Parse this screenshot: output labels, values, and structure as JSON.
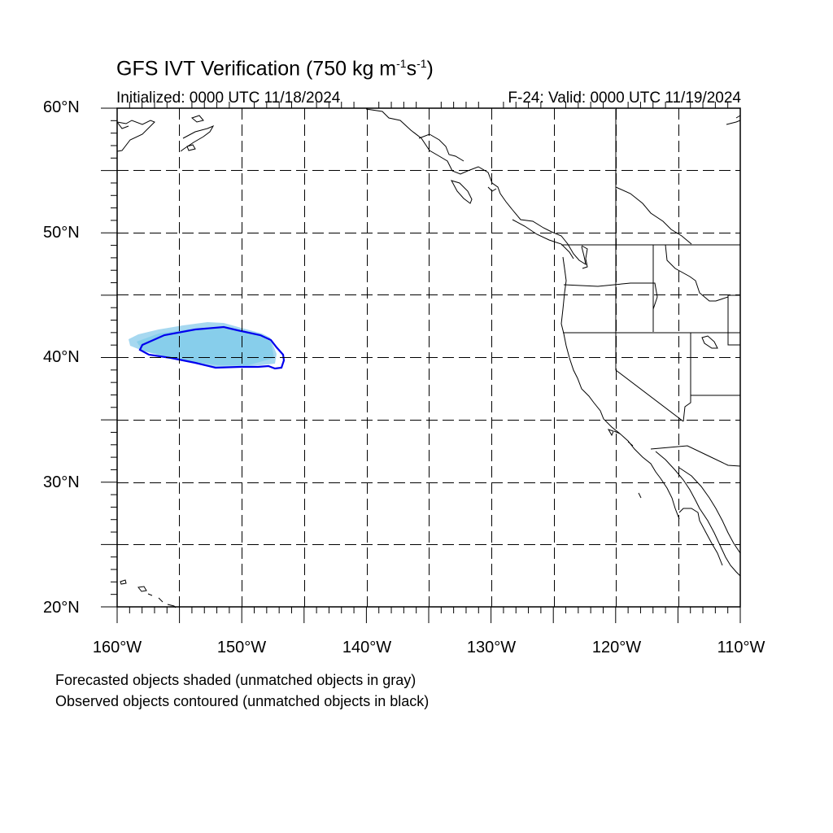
{
  "title": {
    "main": "GFS IVT Verification (750 kg m",
    "sup1": "-1",
    "mid": "s",
    "sup2": "-1",
    "end": ")"
  },
  "subtitle": {
    "left": "Initialized: 0000 UTC 11/18/2024",
    "right": "F-24: Valid: 0000 UTC 11/19/2024"
  },
  "axes": {
    "lat_labels": [
      "60°N",
      "50°N",
      "40°N",
      "30°N",
      "20°N"
    ],
    "lon_labels": [
      "160°W",
      "150°W",
      "140°W",
      "130°W",
      "120°W",
      "110°W"
    ],
    "lat_range": [
      20,
      60
    ],
    "lon_range": [
      -160,
      -110
    ],
    "grid": true
  },
  "notes": {
    "line1": "Forecasted objects shaded (unmatched objects in gray)",
    "line2": "Observed objects contoured (unmatched objects in black)"
  },
  "colors": {
    "forecast_fill": "#87ceeb",
    "forecast_outer": "#a6d8f0",
    "observed_contour": "#0000ee",
    "coast": "#000000",
    "grid": "#000000"
  }
}
